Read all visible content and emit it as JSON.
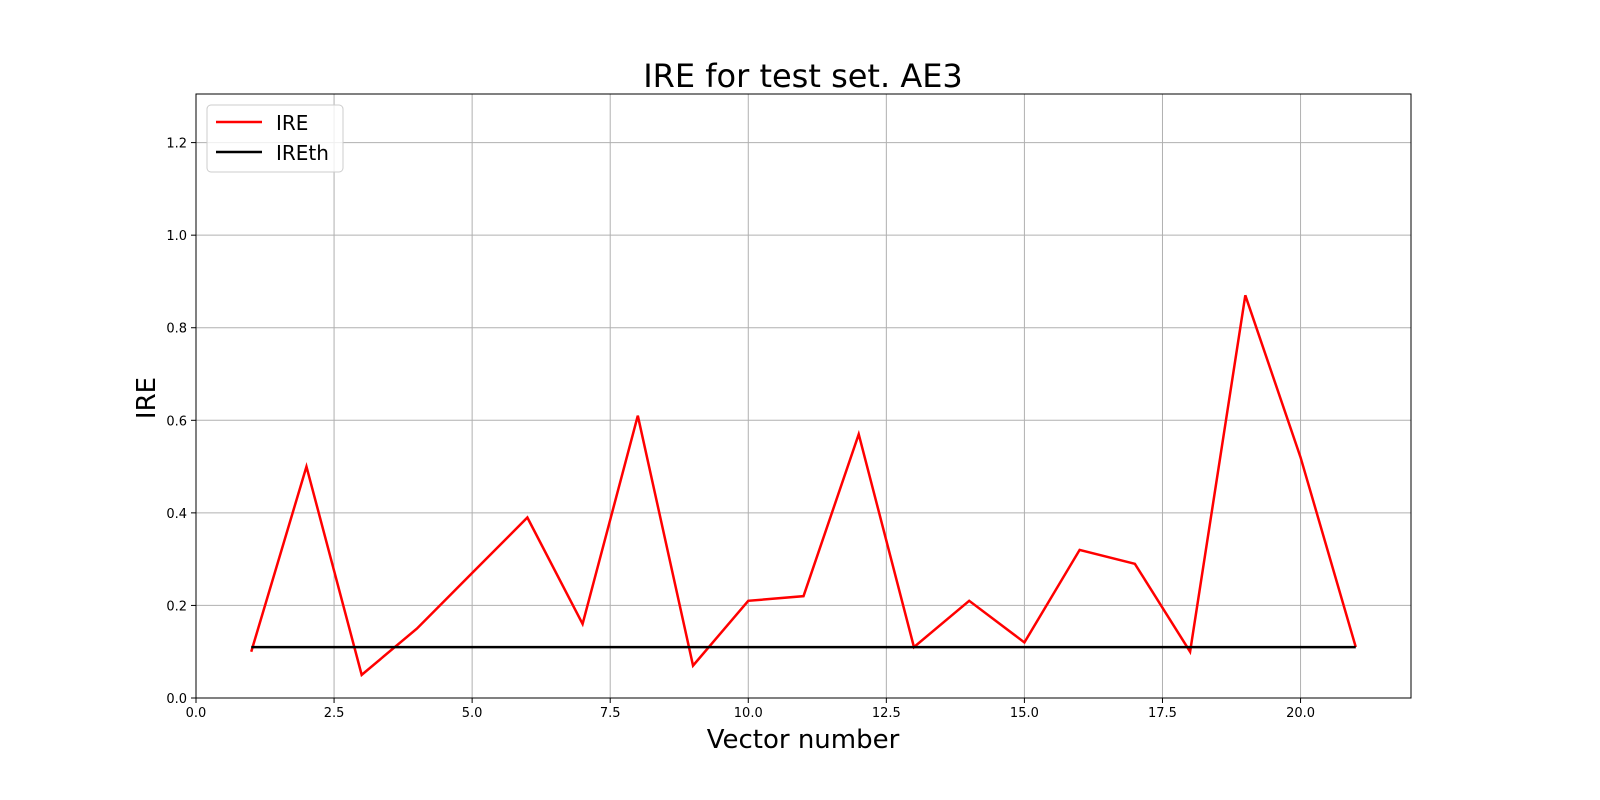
{
  "chart_data": {
    "type": "line",
    "title": "IRE for test set. AE3",
    "xlabel": "Vector number",
    "ylabel": "IRE",
    "xlim": [
      0,
      22
    ],
    "ylim": [
      0,
      1.305
    ],
    "xticks": [
      "0.0",
      "2.5",
      "5.0",
      "7.5",
      "10.0",
      "12.5",
      "15.0",
      "17.5",
      "20.0"
    ],
    "xtick_values": [
      0,
      2.5,
      5,
      7.5,
      10,
      12.5,
      15,
      17.5,
      20
    ],
    "yticks": [
      "0.0",
      "0.2",
      "0.4",
      "0.6",
      "0.8",
      "1.0",
      "1.2"
    ],
    "ytick_values": [
      0,
      0.2,
      0.4,
      0.6,
      0.8,
      1.0,
      1.2
    ],
    "grid": true,
    "legend_placement": "upper-left",
    "x": [
      1,
      2,
      3,
      4,
      5,
      6,
      7,
      8,
      9,
      10,
      11,
      12,
      13,
      14,
      15,
      16,
      17,
      18,
      19,
      20,
      21
    ],
    "series": [
      {
        "name": "IRE",
        "color": "#ff0000",
        "values": [
          0.1,
          0.5,
          0.05,
          0.15,
          0.27,
          0.39,
          0.16,
          0.61,
          0.07,
          0.21,
          0.22,
          0.57,
          0.11,
          0.21,
          0.12,
          0.32,
          0.29,
          0.1,
          0.87,
          0.52,
          0.11
        ]
      },
      {
        "name": "IREth",
        "color": "#000000",
        "values": [
          0.11,
          0.11,
          0.11,
          0.11,
          0.11,
          0.11,
          0.11,
          0.11,
          0.11,
          0.11,
          0.11,
          0.11,
          0.11,
          0.11,
          0.11,
          0.11,
          0.11,
          0.11,
          0.11,
          0.11,
          0.11
        ]
      }
    ]
  }
}
